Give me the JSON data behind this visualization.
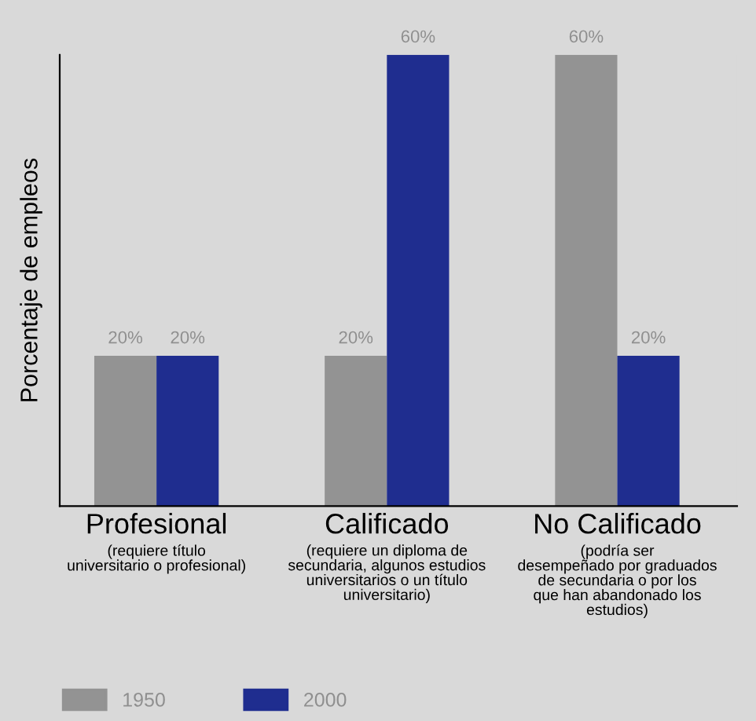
{
  "chart_data": {
    "type": "bar",
    "ylabel": "Porcentaje de empleos",
    "categories": [
      "Profesional\n(requiere título\nuniversitario o profesional)",
      "Calificado\n(requiere un diploma de\nsecundaria, algunos estudios\nuniversitarios o un título\nuniversitario)",
      "No Calificado\n(podría ser\ndesempeñado por graduados\nde secundaria o por los\nque han abandonado los\nestudios)"
    ],
    "series": [
      {
        "name": "1950",
        "color": "#939393",
        "values": [
          20,
          20,
          60
        ],
        "value_labels": [
          "20%",
          "20%",
          "60%"
        ]
      },
      {
        "name": "2000",
        "color": "#1f2d8f",
        "values": [
          20,
          60,
          20
        ],
        "value_labels": [
          "20%",
          "60%",
          "20%"
        ]
      }
    ],
    "ylim": [
      0,
      60
    ],
    "tick_labels": "x",
    "grid": false,
    "legend": "bottom left"
  }
}
